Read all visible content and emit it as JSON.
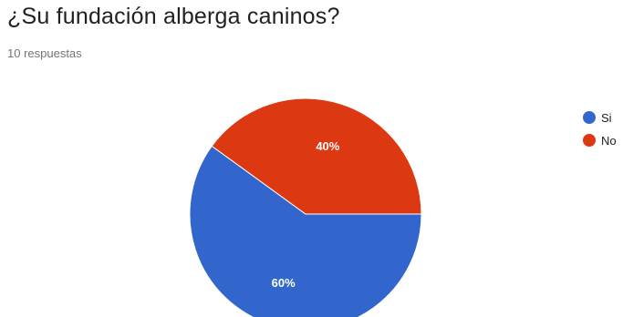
{
  "question": {
    "title": "¿Su fundación alberga caninos?",
    "response_count": "10 respuestas"
  },
  "chart_data": {
    "type": "pie",
    "categories": [
      "Si",
      "No"
    ],
    "values": [
      60,
      40
    ],
    "labels": [
      "60%",
      "40%"
    ],
    "colors": [
      "#3366cc",
      "#dc3912"
    ],
    "legend_position": "right"
  }
}
